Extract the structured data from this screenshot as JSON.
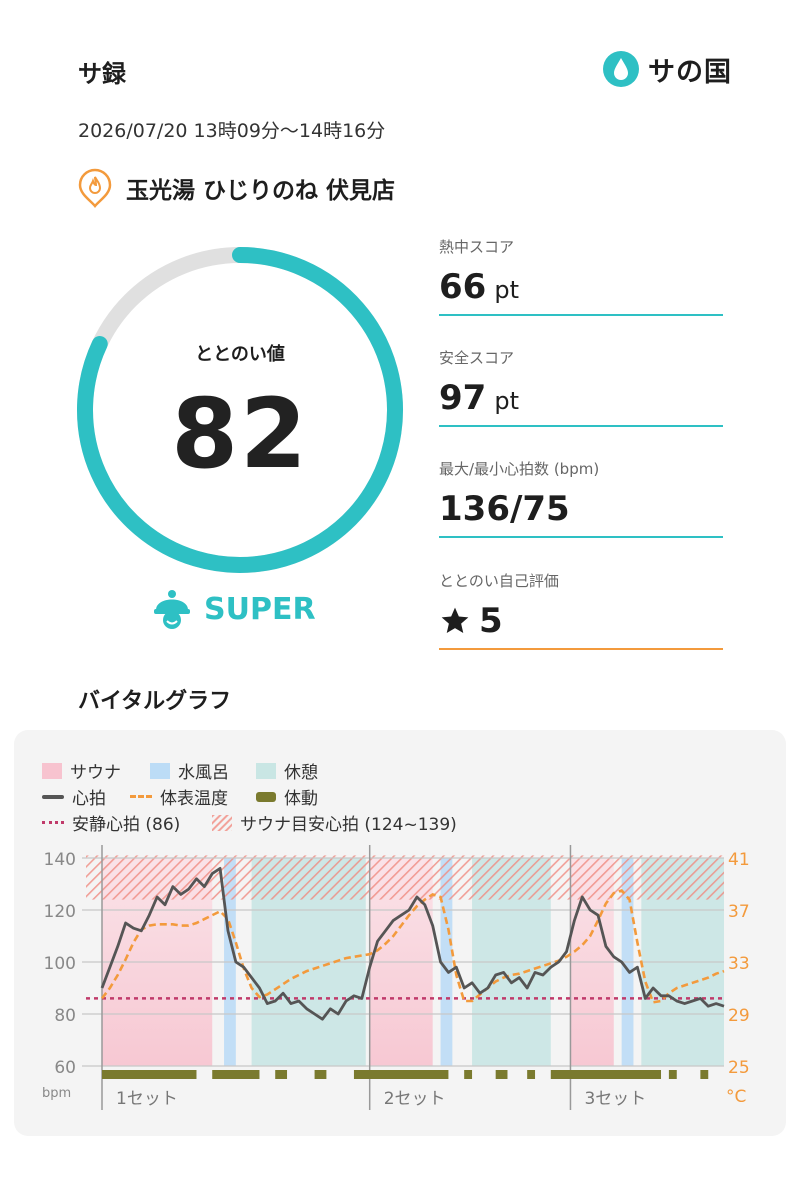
{
  "header": {
    "title": "サ録",
    "logo_text": "サの国"
  },
  "session": {
    "datetime": "2026/07/20 13時09分〜14時16分",
    "facility": "玉光湯 ひじりのね 伏見店"
  },
  "gauge": {
    "label": "ととのい値",
    "value": "82",
    "max": 100,
    "rank": "SUPER"
  },
  "metrics": [
    {
      "label": "熱中スコア",
      "value": "66",
      "unit": "pt"
    },
    {
      "label": "安全スコア",
      "value": "97",
      "unit": "pt"
    },
    {
      "label": "最大/最小心拍数 (bpm)",
      "value": "136/75",
      "unit": ""
    },
    {
      "label": "ととのい自己評価",
      "value": "5",
      "unit": ""
    }
  ],
  "section_title": "バイタルグラフ",
  "colors": {
    "accent": "#2ec0c4",
    "orange": "#f39a3c",
    "sauna": "#f7c3cf",
    "water": "#bcdcf6",
    "rest": "#c9e6e4",
    "hr": "#555555",
    "resting": "#c03a6a",
    "movement": "#7a7a2e"
  },
  "legend": {
    "sauna": "サウナ",
    "water": "水風呂",
    "rest": "休憩",
    "hr": "心拍",
    "temp": "体表温度",
    "movement": "体動",
    "resting_hr": "安静心拍 (86)",
    "target_zone": "サウナ目安心拍 (124~139)"
  },
  "chart_data": {
    "type": "line",
    "xlabel": "",
    "ylabel": "bpm",
    "y2label": "°C",
    "ylim": [
      60,
      140
    ],
    "y2lim": [
      25,
      41
    ],
    "yticks": [
      "140",
      "120",
      "100",
      "80",
      "60"
    ],
    "y2ticks": [
      "41",
      "37",
      "33",
      "29",
      "25"
    ],
    "x_set_labels": [
      "1セット",
      "2セット",
      "3セット"
    ],
    "resting_hr": 86,
    "target_zone": [
      124,
      139
    ],
    "phases": [
      {
        "type": "sauna",
        "start": 0,
        "end": 14
      },
      {
        "type": "water",
        "start": 15.5,
        "end": 17
      },
      {
        "type": "rest",
        "start": 19,
        "end": 33.5
      },
      {
        "type": "sauna",
        "start": 34,
        "end": 42
      },
      {
        "type": "water",
        "start": 43,
        "end": 44.5
      },
      {
        "type": "rest",
        "start": 47,
        "end": 57
      },
      {
        "type": "sauna",
        "start": 59.5,
        "end": 65
      },
      {
        "type": "water",
        "start": 66,
        "end": 67.5
      },
      {
        "type": "rest",
        "start": 68.5,
        "end": 79
      }
    ],
    "series": [
      {
        "name": "心拍",
        "x": [
          0,
          1,
          2,
          3,
          4,
          5,
          6,
          7,
          8,
          9,
          10,
          11,
          12,
          13,
          14,
          15,
          16,
          17,
          18,
          19,
          20,
          21,
          22,
          23,
          24,
          25,
          26,
          27,
          28,
          29,
          30,
          31,
          32,
          33,
          34,
          35,
          36,
          37,
          38,
          39,
          40,
          41,
          42,
          43,
          44,
          45,
          46,
          47,
          48,
          49,
          50,
          51,
          52,
          53,
          54,
          55,
          56,
          57,
          58,
          59,
          60,
          61,
          62,
          63,
          64,
          65,
          66,
          67,
          68,
          69,
          70,
          71,
          72,
          73,
          74,
          75,
          76,
          77,
          78,
          79
        ],
        "values": [
          90,
          98,
          106,
          115,
          113,
          112,
          118,
          125,
          122,
          129,
          126,
          128,
          132,
          129,
          134,
          136,
          112,
          100,
          98,
          94,
          90,
          84,
          85,
          88,
          84,
          85,
          82,
          80,
          78,
          82,
          80,
          85,
          87,
          86,
          98,
          108,
          112,
          116,
          118,
          120,
          125,
          122,
          114,
          100,
          96,
          98,
          90,
          92,
          88,
          90,
          95,
          96,
          92,
          94,
          90,
          96,
          95,
          98,
          100,
          104,
          116,
          125,
          120,
          118,
          106,
          102,
          100,
          96,
          98,
          86,
          90,
          87,
          87,
          85,
          84,
          85,
          86,
          83,
          84,
          83
        ]
      },
      {
        "name": "体表温度",
        "x": [
          0,
          1,
          2,
          3,
          4,
          5,
          6,
          7,
          8,
          9,
          10,
          11,
          12,
          13,
          14,
          15,
          16,
          17,
          18,
          19,
          20,
          21,
          22,
          23,
          24,
          25,
          26,
          27,
          28,
          29,
          30,
          31,
          32,
          33,
          34,
          35,
          36,
          37,
          38,
          39,
          40,
          41,
          42,
          43,
          44,
          45,
          46,
          47,
          48,
          49,
          50,
          51,
          52,
          53,
          54,
          55,
          56,
          57,
          58,
          59,
          60,
          61,
          62,
          63,
          64,
          65,
          66,
          67,
          68,
          69,
          70,
          71,
          72,
          73,
          74,
          75,
          76,
          77,
          78,
          79
        ],
        "values": [
          30.2,
          31.0,
          32.0,
          33.2,
          34.5,
          35.5,
          35.8,
          35.9,
          35.9,
          35.9,
          35.8,
          35.8,
          36.0,
          36.3,
          36.6,
          36.9,
          36.3,
          34.5,
          32.5,
          31.0,
          30.3,
          30.5,
          30.9,
          31.3,
          31.7,
          32.0,
          32.3,
          32.5,
          32.7,
          32.9,
          33.1,
          33.3,
          33.4,
          33.5,
          33.6,
          33.9,
          34.4,
          35.0,
          35.8,
          36.6,
          37.3,
          37.8,
          38.2,
          38.0,
          35.5,
          32.0,
          30.0,
          30.0,
          30.5,
          31.0,
          31.5,
          31.8,
          32.0,
          32.1,
          32.3,
          32.5,
          32.7,
          32.9,
          33.1,
          33.4,
          33.8,
          34.3,
          35.0,
          36.2,
          37.5,
          38.3,
          38.5,
          37.8,
          34.5,
          31.5,
          29.9,
          30.0,
          30.6,
          31.0,
          31.2,
          31.4,
          31.6,
          31.8,
          32.1,
          32.3
        ]
      }
    ],
    "movement_hours": [
      {
        "x": 0,
        "w": 12
      },
      {
        "x": 14,
        "w": 6
      },
      {
        "x": 22,
        "w": 1.5
      },
      {
        "x": 27,
        "w": 1.5
      },
      {
        "x": 32,
        "w": 12
      },
      {
        "x": 46,
        "w": 1
      },
      {
        "x": 50,
        "w": 1.5
      },
      {
        "x": 54,
        "w": 1
      },
      {
        "x": 57,
        "w": 14
      },
      {
        "x": 72,
        "w": 1
      },
      {
        "x": 76,
        "w": 1
      }
    ]
  }
}
